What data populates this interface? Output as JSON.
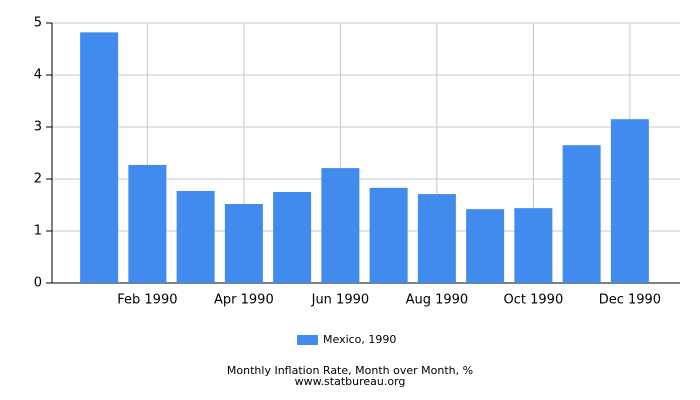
{
  "chart_data": {
    "type": "bar",
    "title": "Monthly Inflation Rate, Month over Month, %",
    "subtitle": "www.statbureau.org",
    "categories": [
      null,
      "Feb 1990",
      null,
      "Apr 1990",
      null,
      "Jun 1990",
      null,
      "Aug 1990",
      null,
      "Oct 1990",
      null,
      "Dec 1990"
    ],
    "series": [
      {
        "name": "Mexico, 1990",
        "color": "#418bee",
        "values": [
          4.82,
          2.27,
          1.77,
          1.52,
          1.75,
          2.21,
          1.83,
          1.71,
          1.42,
          1.44,
          2.65,
          3.15
        ]
      }
    ],
    "ylim": [
      0,
      5
    ],
    "yticks": [
      0,
      1,
      2,
      3,
      4,
      5
    ],
    "grid": true,
    "legend": "bottom"
  }
}
